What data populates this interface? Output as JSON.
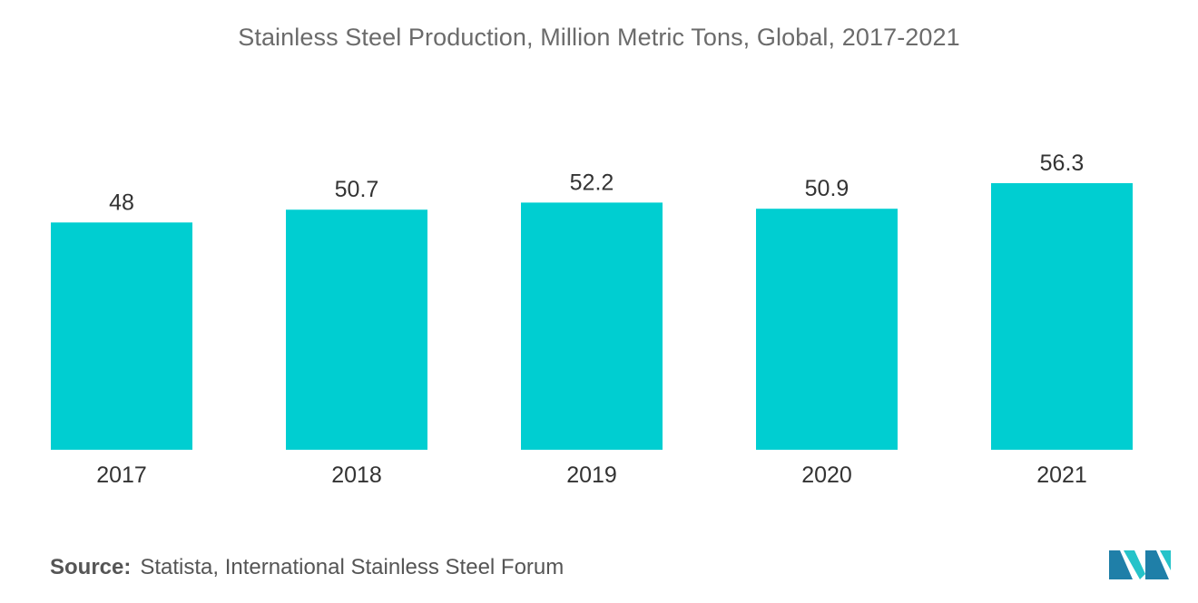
{
  "chart_data": {
    "type": "bar",
    "title": "Stainless Steel Production, Million Metric Tons, Global, 2017-2021",
    "categories": [
      "2017",
      "2018",
      "2019",
      "2020",
      "2021"
    ],
    "values": [
      48,
      50.7,
      52.2,
      50.9,
      56.3
    ],
    "value_labels": [
      "48",
      "50.7",
      "52.2",
      "50.9",
      "56.3"
    ],
    "xlabel": "",
    "ylabel": "",
    "ylim": [
      0,
      56.3
    ],
    "grid": false,
    "legend": "none",
    "bar_color": "#00ced1"
  },
  "footer": {
    "source_label": "Source:",
    "source_text": "Statista, International Stainless Steel Forum"
  },
  "logo": {
    "icon": "mordor-intelligence-logo-icon",
    "colors": [
      "#1f7fa8",
      "#25c3c9"
    ]
  }
}
